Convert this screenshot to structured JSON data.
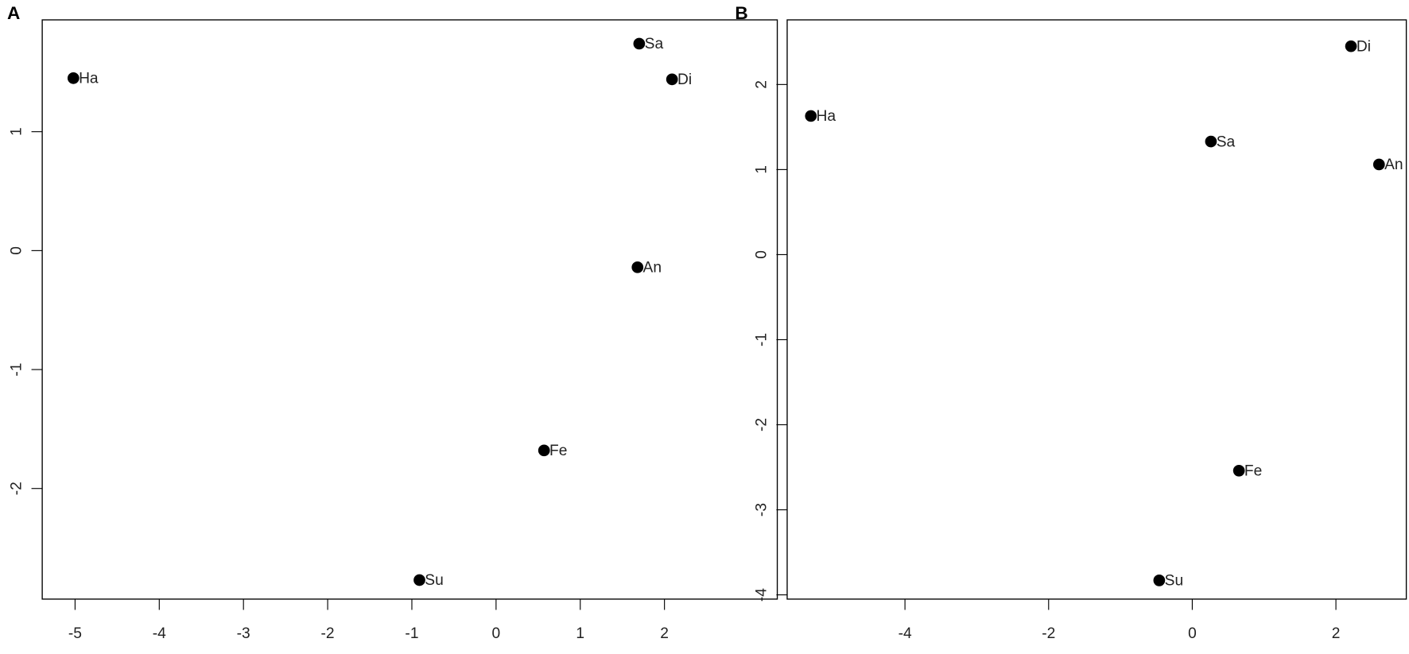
{
  "chart_data": [
    {
      "type": "scatter",
      "panel_label": "A",
      "color": "#000000",
      "point_labels": [
        "Ha",
        "Sa",
        "Di",
        "An",
        "Fe",
        "Su"
      ],
      "x": [
        -5.02,
        1.7,
        2.09,
        1.68,
        0.57,
        -0.91
      ],
      "y": [
        1.45,
        1.74,
        1.44,
        -0.14,
        -1.68,
        -2.77
      ],
      "xlim": [
        -5.39,
        3.34
      ],
      "ylim": [
        -2.93,
        1.94
      ],
      "xticks": [
        -5,
        -4,
        -3,
        -2,
        -1,
        0,
        1,
        2
      ],
      "yticks": [
        -2,
        -1,
        0,
        1
      ]
    },
    {
      "type": "scatter",
      "panel_label": "B",
      "color": "#000000",
      "point_labels": [
        "Ha",
        "Sa",
        "Di",
        "An",
        "Fe",
        "Su"
      ],
      "x": [
        -5.31,
        0.26,
        2.21,
        2.6,
        0.65,
        -0.46
      ],
      "y": [
        1.63,
        1.33,
        2.45,
        1.06,
        -2.54,
        -3.83
      ],
      "xlim": [
        -5.64,
        2.98
      ],
      "ylim": [
        -4.05,
        2.76
      ],
      "xticks": [
        -4,
        -2,
        0,
        2
      ],
      "yticks": [
        -4,
        -3,
        -2,
        -1,
        0,
        1,
        2
      ]
    }
  ]
}
